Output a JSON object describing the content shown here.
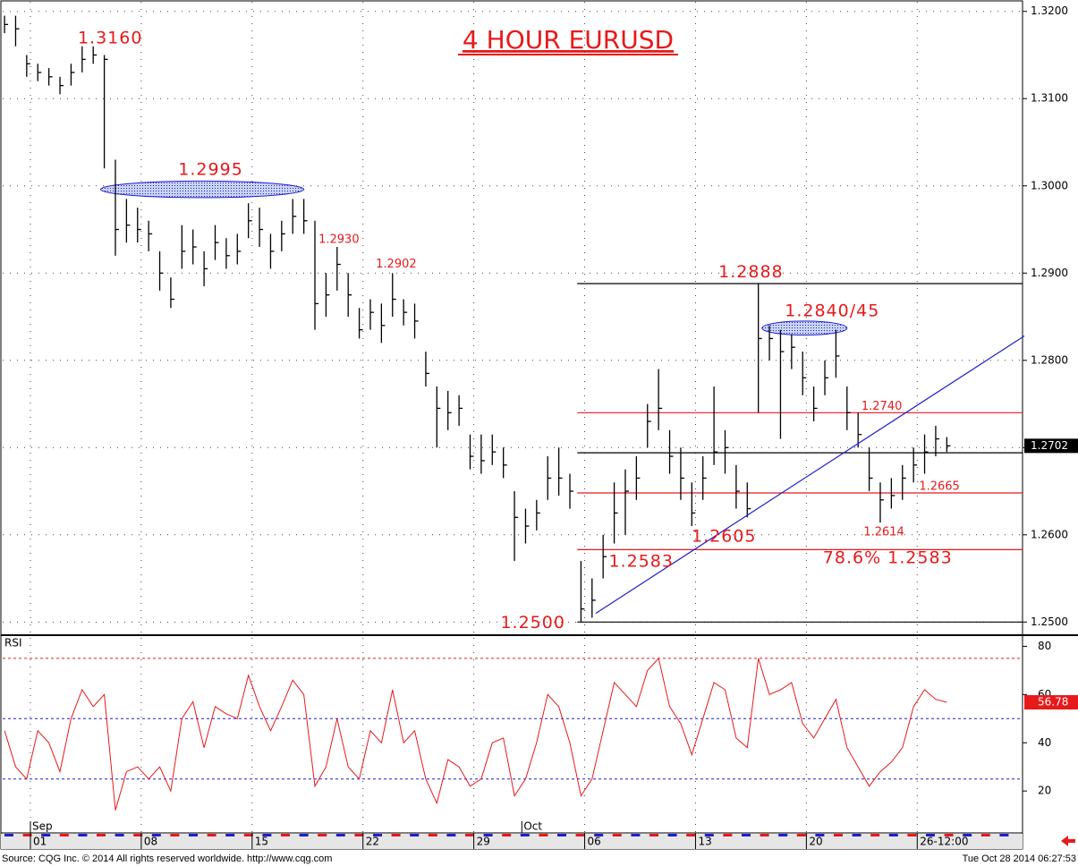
{
  "chart_data": {
    "type": "ohlc",
    "title": "4 HOUR EURUSD",
    "color": "#000000",
    "accent_color": "#e8191a",
    "grid": true,
    "x": [
      0,
      3,
      6,
      9,
      12,
      15,
      18,
      21,
      24,
      27,
      30,
      33,
      36,
      39,
      42,
      45,
      48,
      51,
      54,
      57,
      60,
      63,
      66,
      69,
      72,
      75,
      78,
      81,
      84,
      87,
      90,
      93,
      96,
      99,
      102,
      105,
      108,
      111,
      114,
      117,
      120,
      123,
      126,
      129,
      132,
      135,
      138,
      141,
      144,
      147,
      150,
      153,
      156,
      159,
      162,
      165,
      168,
      171,
      174,
      177,
      180,
      183,
      186,
      189,
      192,
      195,
      198,
      201,
      204,
      207,
      210,
      213,
      216,
      219,
      222,
      225,
      228,
      231,
      234,
      237,
      240,
      243,
      246,
      249,
      252,
      255
    ],
    "high": [
      1.3195,
      1.3195,
      1.315,
      1.314,
      1.3135,
      1.3125,
      1.314,
      1.316,
      1.316,
      1.315,
      1.303,
      1.2985,
      1.2975,
      1.296,
      1.2925,
      1.2895,
      1.2955,
      1.295,
      1.2925,
      1.2955,
      1.294,
      1.2945,
      1.298,
      1.2975,
      1.2945,
      1.296,
      1.2985,
      1.2985,
      1.296,
      1.29,
      1.293,
      1.29,
      1.286,
      1.287,
      1.2865,
      1.29,
      1.287,
      1.2865,
      1.281,
      1.277,
      1.2765,
      1.276,
      1.2715,
      1.2715,
      1.2715,
      1.27,
      1.265,
      1.263,
      1.264,
      1.269,
      1.27,
      1.267,
      1.257,
      1.255,
      1.26,
      1.266,
      1.2675,
      1.269,
      1.275,
      1.279,
      1.272,
      1.27,
      1.266,
      1.269,
      1.277,
      1.272,
      1.268,
      1.266,
      1.2888,
      1.284,
      1.2835,
      1.283,
      1.281,
      1.277,
      1.28,
      1.2835,
      1.277,
      1.274,
      1.27,
      1.266,
      1.2665,
      1.268,
      1.27,
      1.2715,
      1.2725,
      1.2712
    ],
    "low": [
      1.3175,
      1.316,
      1.3125,
      1.312,
      1.3115,
      1.3105,
      1.3115,
      1.313,
      1.314,
      1.302,
      1.292,
      1.2935,
      1.2935,
      1.2925,
      1.288,
      1.286,
      1.2905,
      1.291,
      1.2885,
      1.2915,
      1.2905,
      1.291,
      1.294,
      1.293,
      1.2905,
      1.2925,
      1.2945,
      1.2945,
      1.2835,
      1.285,
      1.288,
      1.285,
      1.2825,
      1.2835,
      1.282,
      1.285,
      1.284,
      1.2825,
      1.277,
      1.27,
      1.272,
      1.2725,
      1.2675,
      1.267,
      1.268,
      1.2665,
      1.257,
      1.259,
      1.2605,
      1.264,
      1.2645,
      1.263,
      1.25,
      1.2505,
      1.255,
      1.259,
      1.26,
      1.264,
      1.27,
      1.272,
      1.267,
      1.264,
      1.261,
      1.264,
      1.268,
      1.267,
      1.263,
      1.262,
      1.274,
      1.28,
      1.271,
      1.279,
      1.276,
      1.273,
      1.276,
      1.278,
      1.272,
      1.27,
      1.265,
      1.2614,
      1.263,
      1.264,
      1.266,
      1.267,
      1.269,
      1.2695
    ],
    "close": [
      1.3185,
      1.318,
      1.314,
      1.313,
      1.3125,
      1.3115,
      1.313,
      1.3145,
      1.315,
      1.3145,
      1.295,
      1.2955,
      1.295,
      1.2945,
      1.29,
      1.287,
      1.2925,
      1.293,
      1.2905,
      1.2935,
      1.292,
      1.2925,
      1.296,
      1.295,
      1.2925,
      1.2945,
      1.2965,
      1.296,
      1.2865,
      1.2875,
      1.291,
      1.2875,
      1.2835,
      1.2855,
      1.284,
      1.287,
      1.2855,
      1.2845,
      1.2785,
      1.2745,
      1.274,
      1.2745,
      1.269,
      1.2685,
      1.2695,
      1.268,
      1.262,
      1.261,
      1.2625,
      1.2665,
      1.2665,
      1.265,
      1.2515,
      1.2525,
      1.2575,
      1.2625,
      1.265,
      1.2665,
      1.273,
      1.2745,
      1.269,
      1.2665,
      1.2625,
      1.2665,
      1.2695,
      1.27,
      1.265,
      1.263,
      1.2825,
      1.2825,
      1.281,
      1.2815,
      1.278,
      1.2745,
      1.278,
      1.2805,
      1.274,
      1.2715,
      1.2665,
      1.264,
      1.2645,
      1.2665,
      1.268,
      1.2695,
      1.271,
      1.2702
    ],
    "xlim": [
      -0.5,
      275.5
    ],
    "xticks": [
      {
        "value": 7,
        "label": "01"
      },
      {
        "value": 37,
        "label": "08"
      },
      {
        "value": 67,
        "label": "15"
      },
      {
        "value": 97,
        "label": "22"
      },
      {
        "value": 127,
        "label": "29"
      },
      {
        "value": 157,
        "label": "06"
      },
      {
        "value": 187,
        "label": "13"
      },
      {
        "value": 217,
        "label": "20"
      },
      {
        "value": 247,
        "label": "26-12:00"
      }
    ],
    "month_labels": [
      {
        "value": 7,
        "label": "Sep"
      },
      {
        "value": 140,
        "label": "Oct"
      }
    ],
    "ylim": [
      1.2487,
      1.3211
    ],
    "yticks": [
      {
        "value": 1.25,
        "label": "1.2500"
      },
      {
        "value": 1.26,
        "label": "1.2600"
      },
      {
        "value": 1.27,
        "label": "1.2700"
      },
      {
        "value": 1.28,
        "label": "1.2800"
      },
      {
        "value": 1.29,
        "label": "1.2900"
      },
      {
        "value": 1.3,
        "label": "1.3000"
      },
      {
        "value": 1.31,
        "label": "1.3100"
      },
      {
        "value": 1.32,
        "label": "1.3200"
      }
    ],
    "levels": [
      {
        "value": 1.2888,
        "start": 155,
        "color": "#000000"
      },
      {
        "value": 1.274,
        "start": 155,
        "color": "#e8191a"
      },
      {
        "value": 1.2694,
        "start": 155,
        "color": "#000000"
      },
      {
        "value": 1.2648,
        "start": 155,
        "color": "#e8191a"
      },
      {
        "value": 1.2583,
        "start": 155,
        "color": "#e8191a"
      },
      {
        "value": 1.25,
        "start": 155,
        "color": "#000000"
      }
    ],
    "trendline": {
      "x": [
        160,
        276
      ],
      "y": [
        1.251,
        1.2828
      ],
      "color": "#1f1fd0"
    },
    "zones": [
      {
        "x": [
          26,
          81
        ],
        "y": 1.2996,
        "height": 0.0019
      },
      {
        "x": [
          205,
          228
        ],
        "y": 1.2837,
        "height": 0.0016
      }
    ],
    "annotations": [
      {
        "text": "1.3160",
        "x": 28.6,
        "y": 1.3169,
        "size": "large"
      },
      {
        "text": "1.2995",
        "x": 55.8,
        "y": 1.3018,
        "size": "large"
      },
      {
        "text": "1.2930",
        "x": 90.5,
        "y": 1.2938,
        "size": "small"
      },
      {
        "text": "1.2902",
        "x": 106,
        "y": 1.291,
        "size": "small"
      },
      {
        "text": "1.2888",
        "x": 202,
        "y": 1.2901,
        "size": "large"
      },
      {
        "text": "1.2840/45",
        "x": 224,
        "y": 1.2856,
        "size": "large"
      },
      {
        "text": "1.2740",
        "x": 237.4,
        "y": 1.2747,
        "size": "small"
      },
      {
        "text": "1.2665",
        "x": 253,
        "y": 1.2655,
        "size": "small"
      },
      {
        "text": "1.2614",
        "x": 238,
        "y": 1.2603,
        "size": "small"
      },
      {
        "text": "1.2605",
        "x": 194.7,
        "y": 1.2598,
        "size": "large"
      },
      {
        "text": "1.2583",
        "x": 172.3,
        "y": 1.2569,
        "size": "large"
      },
      {
        "text": "78.6% 1.2583",
        "x": 239,
        "y": 1.2573,
        "size": "large"
      },
      {
        "text": "1.2500",
        "x": 143,
        "y": 1.2499,
        "size": "large"
      }
    ],
    "rsi": {
      "name": "RSI",
      "color": "#e8191a",
      "values": [
        45,
        30,
        25,
        45,
        40,
        28,
        50,
        62,
        55,
        60,
        12,
        28,
        30,
        25,
        30,
        20,
        50,
        57,
        38,
        55,
        52,
        50,
        68,
        55,
        45,
        55,
        66,
        60,
        22,
        30,
        50,
        30,
        25,
        45,
        40,
        62,
        40,
        45,
        25,
        15,
        33,
        30,
        22,
        25,
        40,
        42,
        18,
        25,
        40,
        60,
        55,
        40,
        18,
        25,
        45,
        65,
        60,
        55,
        70,
        75,
        55,
        48,
        35,
        50,
        65,
        62,
        42,
        38,
        75,
        60,
        62,
        65,
        48,
        42,
        50,
        58,
        38,
        30,
        22,
        28,
        32,
        38,
        55,
        62,
        58,
        56.78
      ],
      "ylim": [
        3,
        83.5
      ],
      "yticks": [
        20,
        40,
        60,
        80
      ],
      "reference_lines": [
        {
          "value": 75,
          "color": "#e8191a"
        },
        {
          "value": 50,
          "color": "#1f1fd0"
        },
        {
          "value": 25,
          "color": "#1f1fd0"
        }
      ]
    }
  },
  "footer": {
    "source": "Source: CQG Inc. © 2014 All rights reserved worldwide. http://www.cqg.com",
    "timestamp": "Tue Oct 28 2014 06:27:53"
  }
}
